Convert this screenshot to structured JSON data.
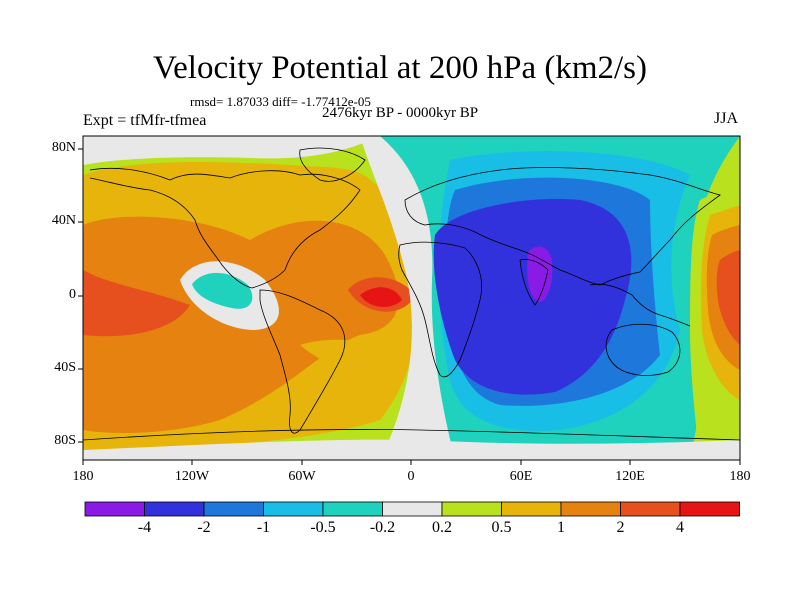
{
  "title": "Velocity Potential at 200 hPa (km2/s)",
  "stats": "rmsd= 1.87033 diff= -1.77412e-05",
  "period": "2476kyr BP - 0000kyr BP",
  "experiment": "Expt = tfMfr-tfmea",
  "season": "JJA",
  "lat_ticks": [
    "80N",
    "40N",
    "0",
    "40S",
    "80S"
  ],
  "lon_ticks": [
    "180",
    "120W",
    "60W",
    "0",
    "60E",
    "120E",
    "180"
  ],
  "colorbar": {
    "labels": [
      "-4",
      "-2",
      "-1",
      "-0.5",
      "-0.2",
      "0.2",
      "0.5",
      "1",
      "2",
      "4"
    ],
    "colors": [
      "#8a1ae6",
      "#3232dc",
      "#1e78dc",
      "#19bee6",
      "#1ed2be",
      "#e8e8e8",
      "#b9e11e",
      "#e6b40a",
      "#e6820f",
      "#e6501e",
      "#e61414"
    ]
  },
  "field_colors": {
    "strong_neg": "#8a1ae6",
    "neg4": "#3232dc",
    "neg2": "#1e78dc",
    "neg1": "#19bee6",
    "neg05": "#1ed2be",
    "zero": "#e8e8e8",
    "pos02": "#b9e11e",
    "pos05": "#e6b40a",
    "pos1": "#e6820f",
    "pos2": "#e6501e",
    "pos4": "#e61414"
  }
}
